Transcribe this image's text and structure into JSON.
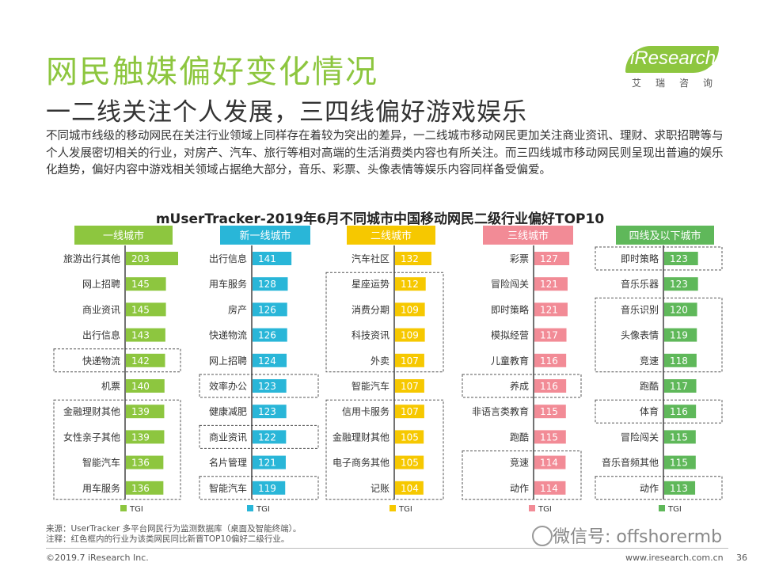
{
  "header": {
    "title": "网民触媒偏好变化情况",
    "subtitle": "一二线关注个人发展，三四线偏好游戏娱乐",
    "logo_text": "iResearch",
    "logo_cn": "艾瑞咨询"
  },
  "intro": "不同城市线级的移动网民在关注行业领域上同样存在着较为突出的差异，一二线城市移动网民更加关注商业资讯、理财、求职招聘等与个人发展密切相关的行业，对房产、汽车、旅行等相对高端的生活消费类内容也有所关注。而三四线城市移动网民则呈现出普遍的娱乐化趋势，偏好内容中游戏相关领域占据绝大部分，音乐、彩票、头像表情等娱乐内容同样备受偏爱。",
  "chart_data": {
    "type": "bar",
    "title": "mUserTracker-2019年6月不同城市中国移动网民二级行业偏好TOP10",
    "legend_label": "TGI",
    "panels": [
      {
        "name": "一线城市",
        "color": "#8dc63f",
        "categories": [
          "旅游出行其他",
          "网上招聘",
          "商业资讯",
          "出行信息",
          "快递物流",
          "机票",
          "金融理财其他",
          "女性亲子其他",
          "智能汽车",
          "用车服务"
        ],
        "values": [
          203,
          145,
          145,
          143,
          142,
          140,
          139,
          139,
          136,
          136
        ],
        "highlight_groups": [
          [
            4,
            4
          ],
          [
            6,
            9
          ]
        ]
      },
      {
        "name": "新一线城市",
        "color": "#29b6d8",
        "categories": [
          "出行信息",
          "用车服务",
          "房产",
          "快递物流",
          "网上招聘",
          "效率办公",
          "健康减肥",
          "商业资讯",
          "名片管理",
          "智能汽车"
        ],
        "values": [
          141,
          128,
          126,
          126,
          124,
          123,
          123,
          122,
          121,
          119
        ],
        "highlight_groups": [
          [
            5,
            5
          ],
          [
            7,
            7
          ],
          [
            9,
            9
          ]
        ]
      },
      {
        "name": "二线城市",
        "color": "#f6c800",
        "categories": [
          "汽车社区",
          "星座运势",
          "消费分期",
          "科技资讯",
          "外卖",
          "智能汽车",
          "信用卡服务",
          "金融理财其他",
          "电子商务其他",
          "记账"
        ],
        "values": [
          132,
          112,
          109,
          109,
          107,
          107,
          107,
          105,
          105,
          104
        ],
        "highlight_groups": [
          [
            1,
            4
          ],
          [
            6,
            9
          ]
        ]
      },
      {
        "name": "三线城市",
        "color": "#f28b96",
        "categories": [
          "彩票",
          "冒险闯关",
          "即时策略",
          "模拟经营",
          "儿童教育",
          "养成",
          "非语言类教育",
          "跑酷",
          "竞速",
          "动作"
        ],
        "values": [
          127,
          121,
          121,
          117,
          116,
          116,
          115,
          115,
          114,
          114
        ],
        "highlight_groups": [
          [
            5,
            5
          ],
          [
            8,
            9
          ]
        ]
      },
      {
        "name": "四线及以下城市",
        "color": "#5fb85a",
        "categories": [
          "即时策略",
          "音乐乐器",
          "音乐识别",
          "头像表情",
          "竞速",
          "跑酷",
          "体育",
          "冒险闯关",
          "音乐音频其他",
          "动作"
        ],
        "values": [
          123,
          123,
          120,
          119,
          118,
          117,
          116,
          115,
          115,
          113
        ],
        "highlight_groups": [
          [
            0,
            0
          ],
          [
            2,
            4
          ],
          [
            6,
            6
          ],
          [
            9,
            9
          ]
        ]
      }
    ]
  },
  "footer": {
    "source": "来源：UserTracker 多平台网民行为监测数据库（桌面及智能终端）。",
    "note": "注释：红色框内的行业为该类网民同比新晋TOP10偏好二级行业。",
    "copyright": "©2019.7 iResearch Inc.",
    "website": "www.iresearch.com.cn",
    "watermark": "微信号: offshorermb",
    "page_number": "36"
  }
}
